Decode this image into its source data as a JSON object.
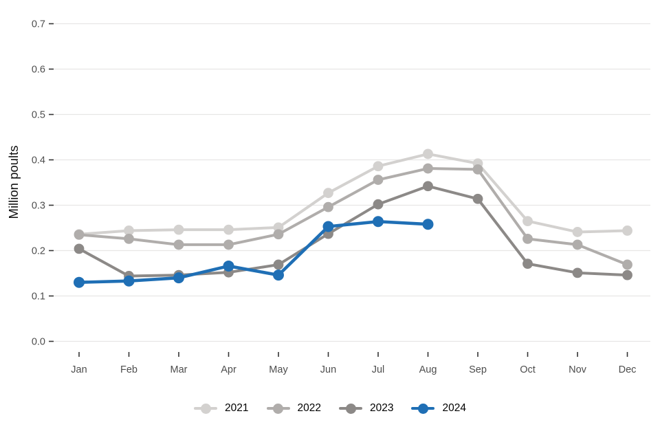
{
  "chart_data": {
    "type": "line",
    "title": "",
    "xlabel": "",
    "ylabel": "Million poults",
    "x": [
      "Jan",
      "Feb",
      "Mar",
      "Apr",
      "May",
      "Jun",
      "Jul",
      "Aug",
      "Sep",
      "Oct",
      "Nov",
      "Dec"
    ],
    "y_ticks": [
      "0.0",
      "0.1",
      "0.2",
      "0.3",
      "0.4",
      "0.5",
      "0.6",
      "0.7"
    ],
    "y_tick_values": [
      0.0,
      0.1,
      0.2,
      0.3,
      0.4,
      0.5,
      0.6,
      0.7
    ],
    "ylim": [
      0.0,
      0.7
    ],
    "grid": "horizontal gridlines only, light gray on white",
    "legend_position": "bottom-center",
    "series": [
      {
        "name": "2021",
        "color": "#d3d1cf",
        "values": [
          0.236,
          0.244,
          0.246,
          0.246,
          0.251,
          0.327,
          0.386,
          0.413,
          0.392,
          0.265,
          0.241,
          0.244
        ]
      },
      {
        "name": "2022",
        "color": "#b0adab",
        "values": [
          0.235,
          0.226,
          0.213,
          0.213,
          0.236,
          0.296,
          0.356,
          0.381,
          0.379,
          0.226,
          0.213,
          0.169
        ]
      },
      {
        "name": "2023",
        "color": "#8c8987",
        "values": [
          0.204,
          0.144,
          0.146,
          0.152,
          0.169,
          0.237,
          0.302,
          0.342,
          0.314,
          0.171,
          0.151,
          0.146
        ]
      },
      {
        "name": "2024",
        "color": "#1f6fb5",
        "values": [
          0.13,
          0.133,
          0.14,
          0.166,
          0.146,
          0.253,
          0.264,
          0.258,
          null,
          null,
          null,
          null
        ]
      }
    ]
  },
  "colors": {
    "background": "#ffffff",
    "gridline": "#e7e6e5",
    "tick_mark": "#333333",
    "tick_label_text": "#4d4d4d",
    "axis_title_text": "#111111",
    "legend_text": "#000000"
  }
}
